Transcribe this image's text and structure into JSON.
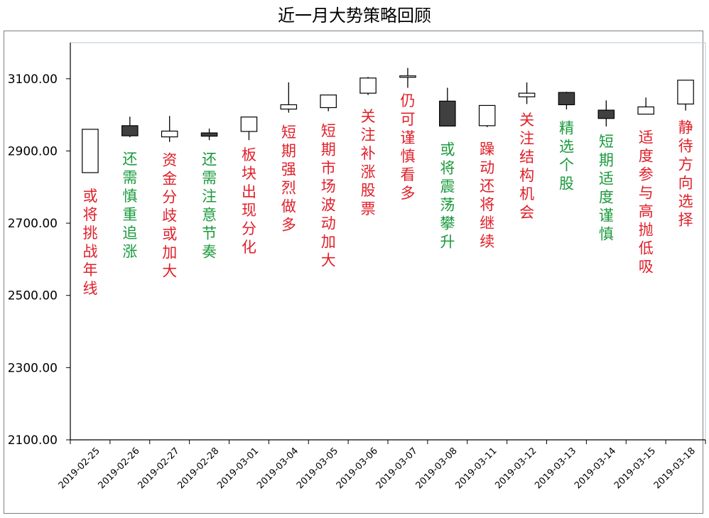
{
  "chart_data": {
    "type": "candlestick",
    "title": "近一月大势策略回顾",
    "ylim": [
      2100,
      3200
    ],
    "yticks": [
      "2100.00",
      "2300.00",
      "2500.00",
      "2700.00",
      "2900.00",
      "3100.00"
    ],
    "grid": false,
    "colors": {
      "up_fill": "#ffffff",
      "down_fill": "#404040",
      "edge": "#000000",
      "annotation_red": "#e0202a",
      "annotation_green": "#1a9a3c"
    },
    "candles": [
      {
        "date": "2019-02-25",
        "open": 2840,
        "close": 2960,
        "high": 2960,
        "low": 2840,
        "annotation": "或将挑战年线",
        "annotation_color": "red"
      },
      {
        "date": "2019-02-26",
        "open": 2970,
        "close": 2942,
        "high": 2995,
        "low": 2938,
        "annotation": "还需慎重追涨",
        "annotation_color": "green"
      },
      {
        "date": "2019-02-27",
        "open": 2939,
        "close": 2955,
        "high": 2997,
        "low": 2925,
        "annotation": "资金分歧或加大",
        "annotation_color": "red"
      },
      {
        "date": "2019-02-28",
        "open": 2950,
        "close": 2941,
        "high": 2962,
        "low": 2930,
        "annotation": "还需注意节奏",
        "annotation_color": "green"
      },
      {
        "date": "2019-03-01",
        "open": 2954,
        "close": 2994,
        "high": 2994,
        "low": 2930,
        "annotation": "板块出现分化",
        "annotation_color": "red"
      },
      {
        "date": "2019-03-04",
        "open": 3016,
        "close": 3028,
        "high": 3090,
        "low": 3006,
        "annotation": "短期强烈做多",
        "annotation_color": "red"
      },
      {
        "date": "2019-03-05",
        "open": 3020,
        "close": 3055,
        "high": 3055,
        "low": 3010,
        "annotation": "短期市场波动加大",
        "annotation_color": "red"
      },
      {
        "date": "2019-03-06",
        "open": 3060,
        "close": 3102,
        "high": 3105,
        "low": 3055,
        "annotation": "关注补涨股票",
        "annotation_color": "red"
      },
      {
        "date": "2019-03-07",
        "open": 3104,
        "close": 3108,
        "high": 3130,
        "low": 3075,
        "annotation": "仍可谨慎看多",
        "annotation_color": "red"
      },
      {
        "date": "2019-03-08",
        "open": 3038,
        "close": 2969,
        "high": 3075,
        "low": 2969,
        "annotation": "或将震荡攀升",
        "annotation_color": "green"
      },
      {
        "date": "2019-03-11",
        "open": 2970,
        "close": 3026,
        "high": 3026,
        "low": 2966,
        "annotation": "躁动还将继续",
        "annotation_color": "red"
      },
      {
        "date": "2019-03-12",
        "open": 3050,
        "close": 3060,
        "high": 3090,
        "low": 3030,
        "annotation": "关注结构机会",
        "annotation_color": "red"
      },
      {
        "date": "2019-03-13",
        "open": 3062,
        "close": 3028,
        "high": 3064,
        "low": 3015,
        "annotation": "精选个股",
        "annotation_color": "green"
      },
      {
        "date": "2019-03-14",
        "open": 3013,
        "close": 2990,
        "high": 3040,
        "low": 2968,
        "annotation": "短期适度谨慎",
        "annotation_color": "green"
      },
      {
        "date": "2019-03-15",
        "open": 3002,
        "close": 3022,
        "high": 3048,
        "low": 3002,
        "annotation": "适度参与高抛低吸",
        "annotation_color": "red"
      },
      {
        "date": "2019-03-18",
        "open": 3030,
        "close": 3096,
        "high": 3096,
        "low": 3012,
        "annotation": "静待方向选择",
        "annotation_color": "red"
      }
    ]
  }
}
